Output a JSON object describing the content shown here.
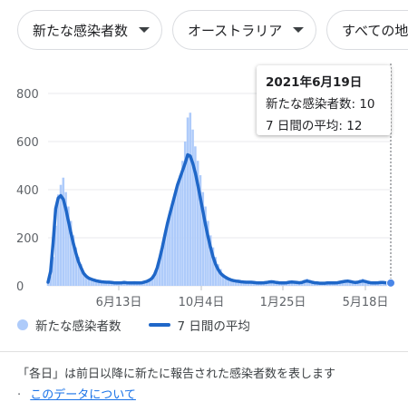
{
  "filters": {
    "metric_label": "新たな感染者数",
    "region_label": "オーストラリア",
    "scope_label": "すべての地域"
  },
  "tooltip": {
    "date": "2021年6月19日",
    "new_cases_label": "新たな感染者数",
    "new_cases_value": "10",
    "avg_label": "7 日間の平均",
    "avg_value": "12"
  },
  "legend": {
    "series1": "新たな感染者数",
    "series2": "7 日間の平均"
  },
  "footer": {
    "note": "「各日」は前日以降に新たに報告された感染者数を表します",
    "separator": "·",
    "about_link": "このデータについて"
  },
  "colors": {
    "bars": "#aecbfa",
    "line": "#1f67c8",
    "grid": "#e8eaed"
  },
  "chart_data": {
    "type": "bar",
    "xlabel": "",
    "ylabel": "",
    "ylim": [
      0,
      800
    ],
    "yticks": [
      0,
      200,
      400,
      600,
      800
    ],
    "xticks": [
      "6月13日",
      "10月4日",
      "1月25日",
      "5月18日"
    ],
    "legend_position": "bottom-left",
    "grid": true,
    "series": [
      {
        "name": "新たな感染者数",
        "type": "bar",
        "values": [
          10,
          40,
          120,
          250,
          380,
          420,
          450,
          390,
          330,
          270,
          210,
          160,
          120,
          90,
          60,
          45,
          35,
          30,
          25,
          22,
          20,
          18,
          16,
          15,
          17,
          14,
          12,
          10,
          12,
          15,
          18,
          14,
          11,
          13,
          15,
          12,
          10,
          14,
          18,
          20,
          25,
          30,
          45,
          70,
          110,
          150,
          200,
          250,
          300,
          340,
          380,
          420,
          460,
          520,
          600,
          700,
          720,
          650,
          580,
          520,
          460,
          390,
          330,
          270,
          210,
          160,
          120,
          90,
          70,
          50,
          40,
          35,
          28,
          24,
          20,
          22,
          18,
          16,
          14,
          15,
          16,
          14,
          12,
          11,
          12,
          13,
          15,
          18,
          20,
          16,
          14,
          12,
          10,
          12,
          14,
          16,
          18,
          15,
          13,
          12,
          14,
          25,
          30,
          20,
          15,
          12,
          10,
          11,
          10,
          12,
          13,
          12,
          11,
          12,
          14,
          16,
          18,
          20,
          22,
          18,
          15,
          12,
          14,
          25,
          30,
          20,
          15,
          12,
          11,
          12,
          14,
          16,
          14,
          12,
          11,
          10
        ]
      },
      {
        "name": "7 日間の平均",
        "type": "line",
        "values": [
          15,
          60,
          180,
          320,
          365,
          375,
          360,
          320,
          270,
          220,
          175,
          135,
          100,
          75,
          52,
          40,
          32,
          28,
          24,
          21,
          19,
          17,
          16,
          15,
          15,
          14,
          13,
          12,
          12,
          13,
          14,
          13,
          12,
          12,
          13,
          12,
          12,
          13,
          16,
          19,
          24,
          32,
          48,
          75,
          115,
          160,
          210,
          258,
          300,
          340,
          380,
          420,
          450,
          480,
          510,
          545,
          540,
          510,
          470,
          420,
          365,
          310,
          255,
          205,
          160,
          120,
          90,
          68,
          52,
          42,
          35,
          29,
          25,
          22,
          20,
          19,
          17,
          16,
          15,
          15,
          15,
          14,
          13,
          12,
          12,
          13,
          14,
          16,
          17,
          16,
          14,
          13,
          12,
          12,
          13,
          15,
          16,
          15,
          14,
          13,
          14,
          18,
          20,
          18,
          15,
          13,
          12,
          11,
          11,
          11,
          12,
          12,
          12,
          12,
          13,
          15,
          17,
          19,
          20,
          18,
          16,
          14,
          15,
          18,
          20,
          18,
          15,
          13,
          12,
          12,
          13,
          14,
          14,
          13,
          12,
          12
        ]
      }
    ]
  }
}
